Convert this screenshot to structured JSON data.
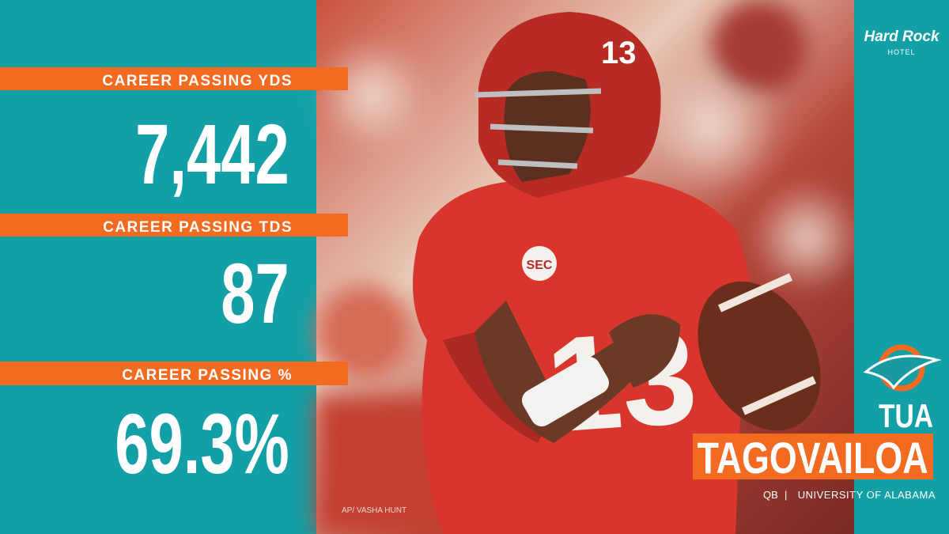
{
  "brand": {
    "name": "Hard Rock",
    "sub": "HOTEL"
  },
  "stats": [
    {
      "label": "CAREER PASSING YDS",
      "value": "7,442"
    },
    {
      "label": "CAREER PASSING TDS",
      "value": "87"
    },
    {
      "label": "CAREER PASSING %",
      "value": "69.3%"
    }
  ],
  "player": {
    "first_name": "TUA",
    "last_name": "TAGOVAILOA",
    "position": "QB",
    "separator": "|",
    "school": "UNIVERSITY OF ALABAMA"
  },
  "photo_credit": "AP/ VASHA HUNT"
}
